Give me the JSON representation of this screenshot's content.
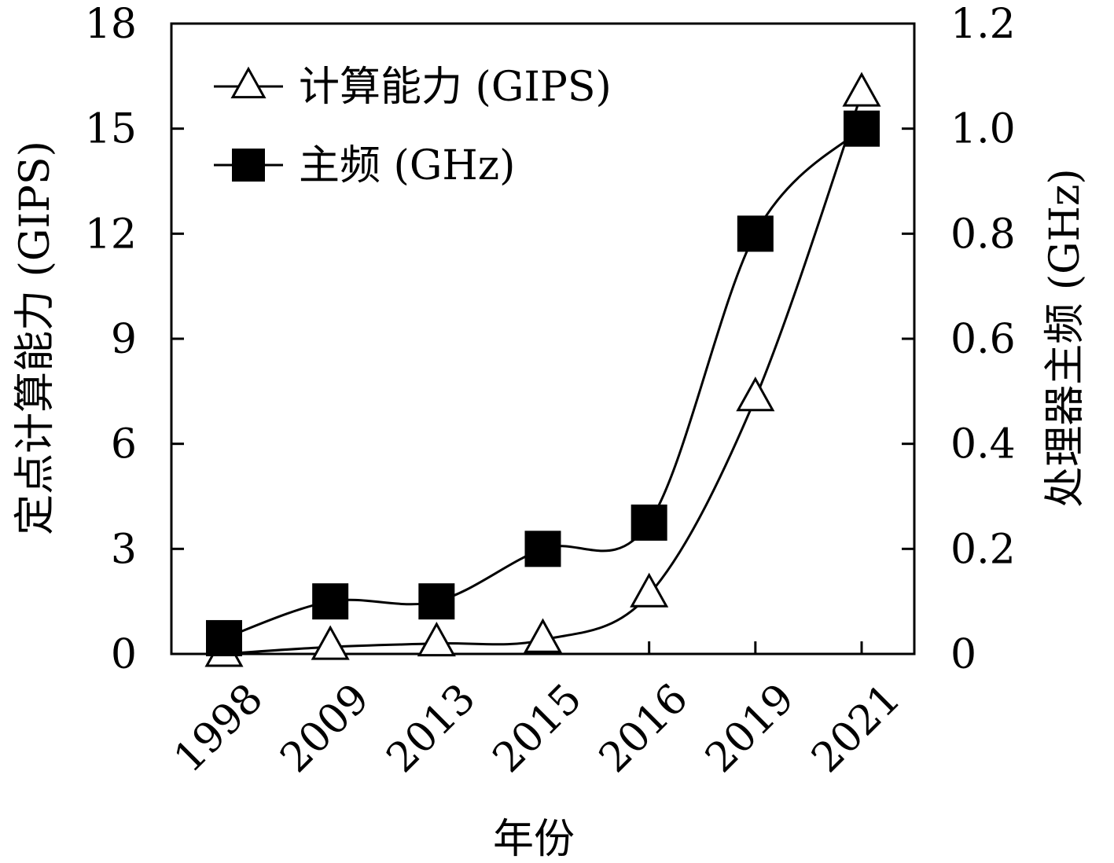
{
  "chart_data": {
    "type": "line",
    "categories": [
      "1998",
      "2009",
      "2013",
      "2015",
      "2016",
      "2019",
      "2021"
    ],
    "xlabel": "年份",
    "ylabel": "定点计算能力 (GIPS)",
    "y2label": "处理器主频 (GHz)",
    "ylim": [
      0,
      18
    ],
    "y2lim": [
      0,
      1.2
    ],
    "yticks": [
      "0",
      "3",
      "6",
      "9",
      "12",
      "15",
      "18"
    ],
    "y2ticks": [
      "0",
      "0.2",
      "0.4",
      "0.6",
      "0.8",
      "1.0",
      "1.2"
    ],
    "grid": false,
    "legend_position": "top-left",
    "series": [
      {
        "name": "计算能力 (GIPS)",
        "axis": "left",
        "marker": "open-triangle",
        "values": [
          0,
          0.2,
          0.3,
          0.4,
          1.7,
          7.3,
          16
        ]
      },
      {
        "name": "主频 (GHz)",
        "axis": "right",
        "marker": "filled-square",
        "values": [
          0.03,
          0.1,
          0.1,
          0.2,
          0.25,
          0.8,
          1.0
        ]
      }
    ]
  }
}
